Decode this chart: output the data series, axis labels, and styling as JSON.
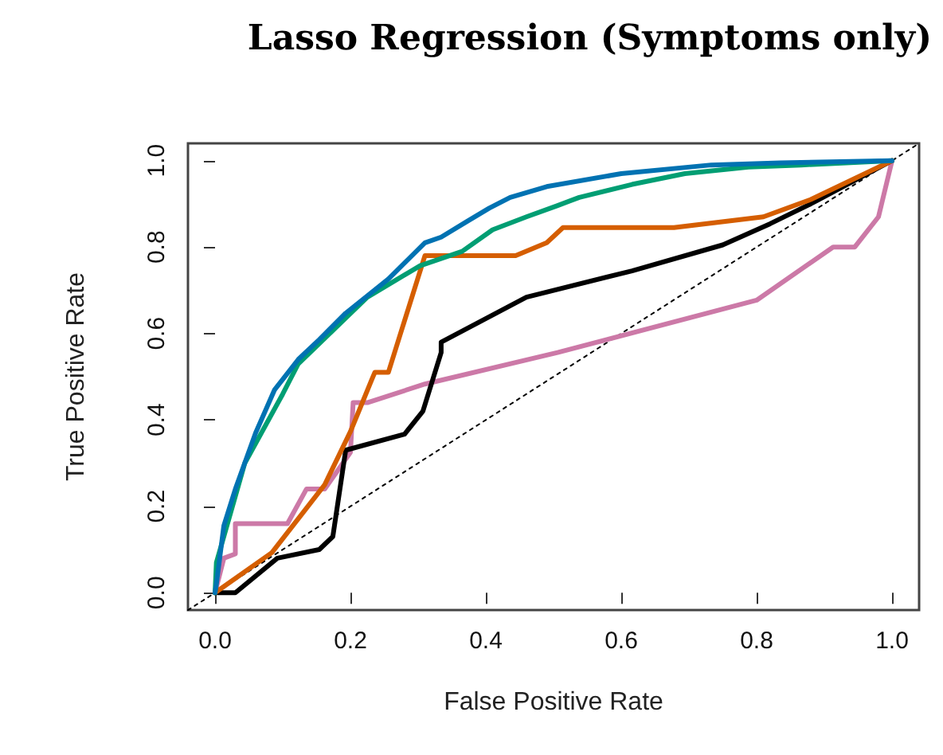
{
  "chart_data": {
    "type": "line",
    "title": "Lasso Regression (Symptoms only)",
    "xlabel": "False Positive Rate",
    "ylabel": "True Positive Rate",
    "xlim": [
      -0.04,
      1.04
    ],
    "ylim": [
      -0.04,
      1.04
    ],
    "xticks": [
      {
        "value": 0,
        "label": "0.0"
      },
      {
        "value": 0.2,
        "label": "0.2"
      },
      {
        "value": 0.4,
        "label": "0.4"
      },
      {
        "value": 0.6,
        "label": "0.6"
      },
      {
        "value": 0.8,
        "label": "0.8"
      },
      {
        "value": 1,
        "label": "1.0"
      }
    ],
    "yticks": [
      {
        "value": 0,
        "label": "0.0"
      },
      {
        "value": 0.2,
        "label": "0.2"
      },
      {
        "value": 0.4,
        "label": "0.4"
      },
      {
        "value": 0.6,
        "label": "0.6"
      },
      {
        "value": 0.8,
        "label": "0.8"
      },
      {
        "value": 1,
        "label": "1.0"
      }
    ],
    "marker": "none",
    "series": [
      {
        "color": "#000000",
        "line_style": "dotted",
        "x": [
          -0.04,
          1.04
        ],
        "values": [
          -0.04,
          1.04
        ]
      },
      {
        "color": "#cc79a7",
        "x": [
          0,
          0.013,
          0.03,
          0.03,
          0.107,
          0.135,
          0.162,
          0.2,
          0.204,
          0.225,
          0.31,
          0.506,
          0.8,
          0.913,
          0.945,
          0.98,
          1
        ],
        "values": [
          0,
          0.08,
          0.09,
          0.16,
          0.16,
          0.24,
          0.24,
          0.325,
          0.44,
          0.44,
          0.483,
          0.556,
          0.677,
          0.8,
          0.8,
          0.87,
          1
        ]
      },
      {
        "color": "#000000",
        "x": [
          0,
          0.03,
          0.092,
          0.154,
          0.174,
          0.193,
          0.28,
          0.307,
          0.334,
          0.334,
          0.46,
          0.616,
          0.75,
          0.82,
          0.88,
          1
        ],
        "values": [
          0,
          0,
          0.08,
          0.1,
          0.13,
          0.33,
          0.367,
          0.42,
          0.556,
          0.58,
          0.684,
          0.745,
          0.805,
          0.854,
          0.9,
          1
        ]
      },
      {
        "color": "#d55e00",
        "x": [
          0,
          0.084,
          0.162,
          0.2,
          0.232,
          0.236,
          0.256,
          0.31,
          0.444,
          0.49,
          0.514,
          0.678,
          0.81,
          0.88,
          1
        ],
        "values": [
          0,
          0.093,
          0.25,
          0.373,
          0.495,
          0.51,
          0.51,
          0.78,
          0.78,
          0.81,
          0.845,
          0.845,
          0.87,
          0.91,
          1
        ]
      },
      {
        "color": "#009e73",
        "x": [
          0,
          0.002,
          0.044,
          0.1,
          0.123,
          0.225,
          0.303,
          0.365,
          0.41,
          0.46,
          0.506,
          0.538,
          0.616,
          0.694,
          0.788,
          0.866,
          1
        ],
        "values": [
          0,
          0.07,
          0.3,
          0.46,
          0.53,
          0.684,
          0.757,
          0.79,
          0.84,
          0.87,
          0.896,
          0.915,
          0.945,
          0.97,
          0.985,
          0.99,
          1
        ]
      },
      {
        "color": "#0072b2",
        "x": [
          0,
          0.002,
          0.013,
          0.03,
          0.06,
          0.088,
          0.123,
          0.154,
          0.193,
          0.256,
          0.31,
          0.334,
          0.373,
          0.405,
          0.436,
          0.49,
          0.6,
          0.733,
          0.835,
          1
        ],
        "values": [
          0,
          0.02,
          0.155,
          0.24,
          0.37,
          0.47,
          0.54,
          0.586,
          0.647,
          0.726,
          0.81,
          0.823,
          0.86,
          0.89,
          0.915,
          0.94,
          0.97,
          0.99,
          0.995,
          1
        ]
      }
    ]
  }
}
